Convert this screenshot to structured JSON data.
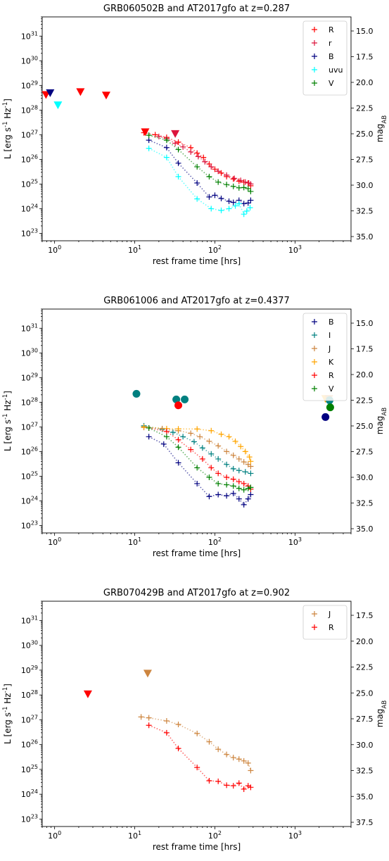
{
  "chart_data": [
    {
      "type": "scatter",
      "title": "GRB060502B and AT2017gfo at z=0.287",
      "xlabel": "rest frame time [hrs]",
      "ylabel": "L [erg s$^{-1}$ Hz$^{-1}$]",
      "y2label": "mag$_{AB}$",
      "xscale": "log",
      "yscale": "log",
      "xlim": [
        0.7,
        5000
      ],
      "ylim": [
        5e+22,
        6e+31
      ],
      "xticks": [
        1,
        10,
        100,
        1000
      ],
      "yticks": [
        1e+23,
        1e+24,
        1e+25,
        1e+26,
        1e+27,
        1e+28,
        1e+29,
        1e+30,
        1e+31
      ],
      "y2ticks": [
        "15.0",
        "17.5",
        "20.0",
        "22.5",
        "25.0",
        "27.5",
        "30.0",
        "32.5",
        "35.0"
      ],
      "legend": "top-right",
      "series": [
        {
          "name": "R",
          "color": "#ff0000",
          "x": [
            13,
            18,
            25,
            35,
            50,
            60,
            72,
            85,
            100,
            120,
            140,
            170,
            200,
            230,
            260,
            280
          ],
          "y": [
            1.2e+27,
            1e+27,
            7.8e+26,
            5e+26,
            3e+26,
            1.8e+26,
            1.2e+26,
            6.5e+25,
            4e+25,
            2.8e+25,
            2e+25,
            1.6e+25,
            1.3e+25,
            1.2e+25,
            1.1e+25,
            8.5e+24
          ]
        },
        {
          "name": "r",
          "color": "#dc143c",
          "x": [
            20,
            25,
            32,
            40,
            50,
            62,
            75,
            90,
            110,
            140,
            175,
            210,
            240,
            265,
            280
          ],
          "y": [
            8.5e+26,
            7e+26,
            4.5e+26,
            3.2e+26,
            2e+26,
            1.3e+26,
            8e+25,
            5e+25,
            3.3e+25,
            2.3e+25,
            1.7e+25,
            1.4e+25,
            1.2e+25,
            1.1e+25,
            1e+25
          ]
        },
        {
          "name": "B",
          "color": "#000080",
          "x": [
            15,
            25,
            35,
            60,
            85,
            100,
            120,
            150,
            170,
            200,
            230,
            260,
            280
          ],
          "y": [
            6e+26,
            3e+26,
            7e+25,
            1.1e+25,
            3e+24,
            3.5e+24,
            2.6e+24,
            2e+24,
            1.8e+24,
            2.2e+24,
            1.6e+24,
            1.7e+24,
            2.2e+24
          ]
        },
        {
          "name": "uvu",
          "color": "#00ffff",
          "x": [
            15,
            25,
            35,
            60,
            90,
            120,
            150,
            180,
            200,
            230,
            250,
            275
          ],
          "y": [
            2.8e+26,
            1.2e+26,
            2e+25,
            2.5e+24,
            1e+24,
            8.5e+23,
            1e+24,
            1.3e+24,
            1.6e+24,
            6e+23,
            8e+23,
            1.1e+24
          ]
        },
        {
          "name": "V",
          "color": "#008000",
          "x": [
            15,
            25,
            35,
            60,
            85,
            110,
            140,
            170,
            200,
            230,
            260,
            280
          ],
          "y": [
            9.5e+26,
            6e+26,
            2.5e+26,
            5e+25,
            2e+25,
            1.2e+25,
            9.5e+24,
            8e+24,
            7e+24,
            7.2e+24,
            6.5e+24,
            5e+24
          ]
        }
      ],
      "upper_limits": [
        {
          "x": 0.78,
          "y": 4.2e+28,
          "color": "#ff0000"
        },
        {
          "x": 0.88,
          "y": 5e+28,
          "color": "#000080"
        },
        {
          "x": 1.1,
          "y": 1.6e+28,
          "color": "#00ffff"
        },
        {
          "x": 2.1,
          "y": 5.5e+28,
          "color": "#ff0000"
        },
        {
          "x": 4.4,
          "y": 4e+28,
          "color": "#ff0000"
        },
        {
          "x": 13.5,
          "y": 1.3e+27,
          "color": "#ff0000"
        },
        {
          "x": 32,
          "y": 1.1e+27,
          "color": "#dc143c"
        }
      ],
      "detections": []
    },
    {
      "type": "scatter",
      "title": "GRB061006 and AT2017gfo at z=0.4377",
      "xlabel": "rest frame time [hrs]",
      "ylabel": "L [erg s$^{-1}$ Hz$^{-1}$]",
      "y2label": "mag$_{AB}$",
      "xscale": "log",
      "yscale": "log",
      "xlim": [
        0.7,
        5000
      ],
      "ylim": [
        5e+22,
        6e+31
      ],
      "xticks": [
        1,
        10,
        100,
        1000
      ],
      "yticks": [
        1e+23,
        1e+24,
        1e+25,
        1e+26,
        1e+27,
        1e+28,
        1e+29,
        1e+30,
        1e+31
      ],
      "y2ticks": [
        "15.0",
        "17.5",
        "20.0",
        "22.5",
        "25.0",
        "27.5",
        "30.0",
        "32.5",
        "35.0"
      ],
      "legend": "top-right",
      "series": [
        {
          "name": "B",
          "color": "#000080",
          "x": [
            15,
            23,
            35,
            60,
            85,
            110,
            140,
            170,
            200,
            230,
            260,
            280
          ],
          "y": [
            4e+26,
            2e+26,
            3.5e+25,
            5e+24,
            1.5e+24,
            1.8e+24,
            1.6e+24,
            2e+24,
            1.2e+24,
            7e+23,
            1.2e+24,
            1.8e+24
          ]
        },
        {
          "name": "I",
          "color": "#008080",
          "x": [
            13,
            22,
            30,
            40,
            55,
            70,
            90,
            110,
            140,
            170,
            200,
            240,
            280
          ],
          "y": [
            1.1e+27,
            8e+26,
            6e+26,
            4e+26,
            2.5e+26,
            1.4e+26,
            8e+25,
            5e+25,
            3e+25,
            2e+25,
            1.7e+25,
            1.5e+25,
            1.3e+25
          ]
        },
        {
          "name": "J",
          "color": "#cd853f",
          "x": [
            13,
            22,
            35,
            50,
            65,
            85,
            110,
            140,
            170,
            200,
            230,
            260,
            280
          ],
          "y": [
            9.5e+26,
            8.5e+26,
            7e+26,
            5.5e+26,
            4e+26,
            2.6e+26,
            1.7e+26,
            1e+26,
            7e+25,
            5e+25,
            3.8e+25,
            3e+25,
            2.5e+25
          ]
        },
        {
          "name": "K",
          "color": "#ffa500",
          "x": [
            13,
            25,
            35,
            60,
            90,
            120,
            150,
            180,
            210,
            240,
            270,
            280
          ],
          "y": [
            1e+27,
            8.5e+26,
            8.3e+26,
            8.2e+26,
            7e+26,
            5e+26,
            4e+26,
            2.6e+26,
            1.6e+26,
            1e+26,
            6e+25,
            4e+25
          ]
        },
        {
          "name": "R",
          "color": "#ff0000",
          "x": [
            15,
            25,
            35,
            50,
            70,
            90,
            110,
            140,
            170,
            200,
            230,
            260,
            280
          ],
          "y": [
            9e+26,
            6.5e+26,
            3e+26,
            1.2e+26,
            5e+25,
            2.2e+25,
            1.3e+25,
            9e+24,
            7.5e+24,
            6e+24,
            5e+24,
            4e+24,
            3e+24
          ]
        },
        {
          "name": "V",
          "color": "#008000",
          "x": [
            15,
            25,
            35,
            60,
            85,
            110,
            140,
            170,
            200,
            230,
            260,
            280
          ],
          "y": [
            9e+26,
            4e+26,
            1.5e+26,
            2.2e+25,
            9e+24,
            5e+24,
            4.5e+24,
            4e+24,
            3.2e+24,
            2.8e+24,
            3.2e+24,
            3.5e+24
          ]
        }
      ],
      "upper_limits": [
        {
          "x": 2400,
          "y": 1.4e+28,
          "color": "#ffa500"
        },
        {
          "x": 2650,
          "y": 1.4e+28,
          "color": "#cd853f"
        }
      ],
      "detections": [
        {
          "x": 10.5,
          "y": 2.2e+28,
          "color": "#008080"
        },
        {
          "x": 33,
          "y": 1.3e+28,
          "color": "#008080"
        },
        {
          "x": 35,
          "y": 7.5e+27,
          "color": "#ff0000"
        },
        {
          "x": 42,
          "y": 1.3e+28,
          "color": "#008080"
        },
        {
          "x": 2400,
          "y": 2.5e+27,
          "color": "#000080"
        },
        {
          "x": 2700,
          "y": 1.2e+28,
          "color": "#008080"
        },
        {
          "x": 2750,
          "y": 6.2e+27,
          "color": "#008000"
        }
      ]
    },
    {
      "type": "scatter",
      "title": "GRB070429B and AT2017gfo at z=0.902",
      "xlabel": "rest frame time [hrs]",
      "ylabel": "L [erg s$^{-1}$ Hz$^{-1}$]",
      "y2label": "mag$_{AB}$",
      "xscale": "log",
      "yscale": "log",
      "xlim": [
        0.7,
        5000
      ],
      "ylim": [
        5e+22,
        6e+31
      ],
      "xticks": [
        1,
        10,
        100,
        1000
      ],
      "yticks": [
        1e+23,
        1e+24,
        1e+25,
        1e+26,
        1e+27,
        1e+28,
        1e+29,
        1e+30,
        1e+31
      ],
      "y2ticks": [
        "17.5",
        "20.0",
        "22.5",
        "25.0",
        "27.5",
        "30.0",
        "32.5",
        "35.0",
        "37.5"
      ],
      "legend": "top-right",
      "series": [
        {
          "name": "J",
          "color": "#cd853f",
          "x": [
            12,
            15,
            25,
            35,
            60,
            85,
            110,
            140,
            170,
            200,
            230,
            260,
            280
          ],
          "y": [
            1.3e+27,
            1.2e+27,
            9e+26,
            6.5e+26,
            2.8e+26,
            1.3e+26,
            6.5e+25,
            4e+25,
            3e+25,
            2.6e+25,
            2.2e+25,
            1.8e+25,
            9e+24
          ]
        },
        {
          "name": "R",
          "color": "#ff0000",
          "x": [
            15,
            25,
            35,
            60,
            85,
            110,
            140,
            170,
            200,
            230,
            260,
            280
          ],
          "y": [
            6e+26,
            3e+26,
            7e+25,
            1.2e+25,
            3.5e+24,
            3.3e+24,
            2.3e+24,
            2.2e+24,
            2.8e+24,
            1.6e+24,
            2.2e+24,
            1.9e+24
          ]
        }
      ],
      "upper_limits": [
        {
          "x": 2.6,
          "y": 1.1e+28,
          "color": "#ff0000"
        },
        {
          "x": 14.5,
          "y": 7.5e+28,
          "color": "#cd853f"
        }
      ],
      "detections": []
    }
  ]
}
